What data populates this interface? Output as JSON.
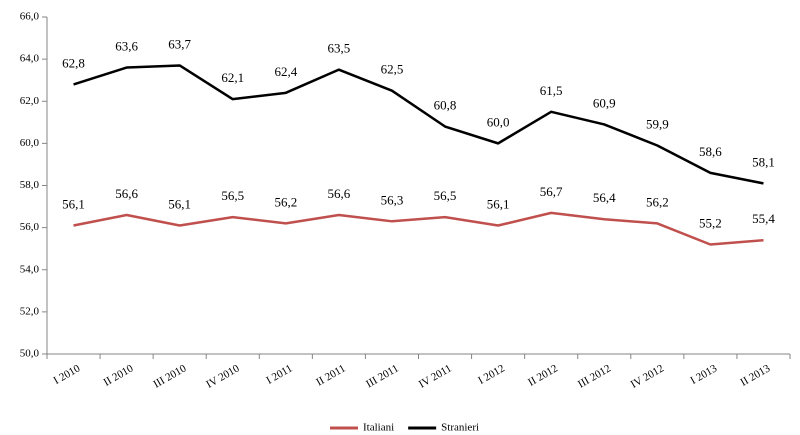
{
  "chart_data": {
    "type": "line",
    "categories": [
      "I 2010",
      "II 2010",
      "III 2010",
      "IV 2010",
      "I 2011",
      "II 2011",
      "III 2011",
      "IV 2011",
      "I 2012",
      "II 2012",
      "III 2012",
      "IV 2012",
      "I 2013",
      "II 2013"
    ],
    "series": [
      {
        "name": "Italiani",
        "color": "#c0504d",
        "values": [
          56.1,
          56.6,
          56.1,
          56.5,
          56.2,
          56.6,
          56.3,
          56.5,
          56.1,
          56.7,
          56.4,
          56.2,
          55.2,
          55.4
        ],
        "value_labels": [
          "56,1",
          "56,6",
          "56,1",
          "56,5",
          "56,2",
          "56,6",
          "56,3",
          "56,5",
          "56,1",
          "56,7",
          "56,4",
          "56,2",
          "55,2",
          "55,4"
        ]
      },
      {
        "name": "Stranieri",
        "color": "#000000",
        "values": [
          62.8,
          63.6,
          63.7,
          62.1,
          62.4,
          63.5,
          62.5,
          60.8,
          60.0,
          61.5,
          60.9,
          59.9,
          58.6,
          58.1
        ],
        "value_labels": [
          "62,8",
          "63,6",
          "63,7",
          "62,1",
          "62,4",
          "63,5",
          "62,5",
          "60,8",
          "60,0",
          "61,5",
          "60,9",
          "59,9",
          "58,6",
          "58,1"
        ]
      }
    ],
    "ylim": [
      50,
      66
    ],
    "yticks": [
      {
        "value": 50,
        "label": "50,0"
      },
      {
        "value": 52,
        "label": "52,0"
      },
      {
        "value": 54,
        "label": "54,0"
      },
      {
        "value": 56,
        "label": "56,0"
      },
      {
        "value": 58,
        "label": "58,0"
      },
      {
        "value": 60,
        "label": "60,0"
      },
      {
        "value": 62,
        "label": "62,0"
      },
      {
        "value": 64,
        "label": "64,0"
      },
      {
        "value": 66,
        "label": "66,0"
      }
    ],
    "grid": false,
    "legend": "bottom"
  }
}
